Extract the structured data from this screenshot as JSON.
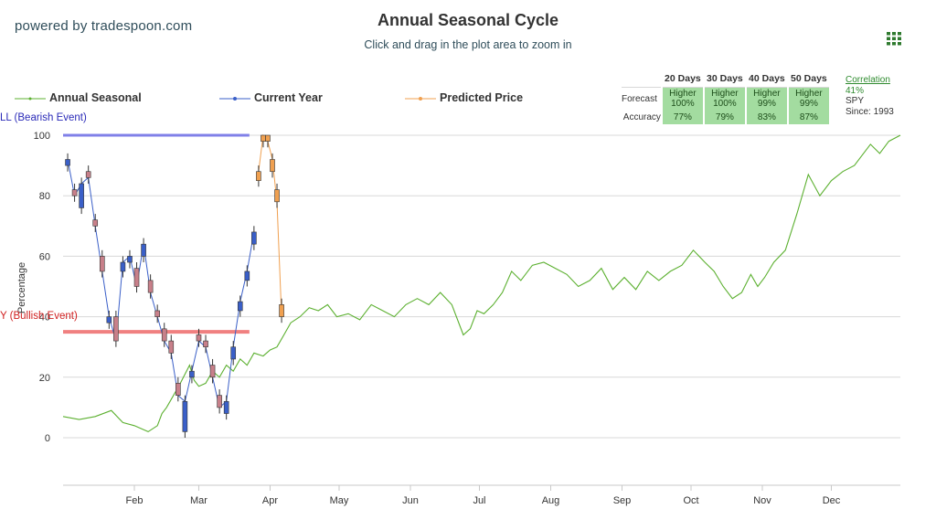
{
  "header": {
    "powered_by": "powered by tradespoon.com",
    "title": "Annual Seasonal Cycle",
    "subtitle": "Click and drag in the plot area to zoom in"
  },
  "legend": {
    "annual_seasonal": "Annual Seasonal",
    "current_year": "Current Year",
    "predicted_price": "Predicted Price"
  },
  "forecast_table": {
    "headers": [
      "20 Days",
      "30 Days",
      "40 Days",
      "50 Days"
    ],
    "forecast_label": "Forecast",
    "accuracy_label": "Accuracy",
    "forecast": [
      {
        "dir": "Higher",
        "pct": "100%"
      },
      {
        "dir": "Higher",
        "pct": "100%"
      },
      {
        "dir": "Higher",
        "pct": "99%"
      },
      {
        "dir": "Higher",
        "pct": "99%"
      }
    ],
    "accuracy": [
      "77%",
      "79%",
      "83%",
      "87%"
    ]
  },
  "correlation": {
    "link": "Correlation",
    "value": "41%",
    "symbol": "SPY",
    "since": "Since: 1993"
  },
  "colors": {
    "annual": "#5cb030",
    "current_up": "#3a5fc8",
    "current_down": "#c8808a",
    "predicted": "#f0a050",
    "bear_line": "#8080e8",
    "bull_line": "#f08080",
    "grid": "#d8d8d8"
  },
  "chart_data": {
    "type": "line",
    "ylabel": "Percentage",
    "ylim": [
      0,
      100
    ],
    "y_ticks": [
      0,
      20,
      40,
      60,
      80,
      100
    ],
    "x_tick_labels": [
      "Feb",
      "Mar",
      "Apr",
      "May",
      "Jun",
      "Jul",
      "Aug",
      "Sep",
      "Oct",
      "Nov",
      "Dec"
    ],
    "x_tick_day_of_year": [
      32,
      60,
      91,
      121,
      152,
      182,
      213,
      244,
      274,
      305,
      335
    ],
    "x_range_days": [
      1,
      365
    ],
    "bearish_event": {
      "label": "LL (Bearish Event)",
      "value": 100,
      "x_range_days": [
        1,
        82
      ]
    },
    "bullish_event": {
      "label": "Y (Bullish Event)",
      "value": 35,
      "x_range_days": [
        1,
        82
      ]
    },
    "series": [
      {
        "name": "Annual Seasonal",
        "style": "line",
        "x_day": [
          1,
          8,
          15,
          22,
          27,
          32,
          38,
          42,
          44,
          46,
          49,
          52,
          56,
          58,
          60,
          63,
          66,
          69,
          72,
          75,
          78,
          81,
          84,
          88,
          91,
          94,
          97,
          100,
          104,
          108,
          112,
          116,
          120,
          125,
          130,
          135,
          140,
          145,
          150,
          155,
          160,
          165,
          170,
          175,
          178,
          181,
          184,
          188,
          192,
          196,
          200,
          205,
          210,
          215,
          220,
          225,
          230,
          235,
          240,
          245,
          250,
          255,
          260,
          265,
          270,
          275,
          280,
          284,
          288,
          292,
          296,
          300,
          303,
          306,
          310,
          315,
          320,
          325,
          330,
          335,
          340,
          345,
          348,
          352,
          356,
          360,
          365
        ],
        "values": [
          7,
          6,
          7,
          9,
          5,
          4,
          2,
          4,
          8,
          10,
          14,
          18,
          24,
          19,
          17,
          18,
          22,
          20,
          24,
          22,
          26,
          24,
          28,
          27,
          29,
          30,
          34,
          38,
          40,
          43,
          42,
          44,
          40,
          41,
          39,
          44,
          42,
          40,
          44,
          46,
          44,
          48,
          44,
          34,
          36,
          42,
          41,
          44,
          48,
          55,
          52,
          57,
          58,
          56,
          54,
          50,
          52,
          56,
          49,
          53,
          49,
          55,
          52,
          55,
          57,
          62,
          58,
          55,
          50,
          46,
          48,
          54,
          50,
          53,
          58,
          62,
          74,
          87,
          80,
          85,
          88,
          90,
          93,
          97,
          94,
          98,
          100
        ]
      },
      {
        "name": "Current Year",
        "style": "candlestick",
        "x_day": [
          3,
          6,
          9,
          12,
          15,
          18,
          21,
          24,
          27,
          30,
          33,
          36,
          39,
          42,
          45,
          48,
          51,
          54,
          57,
          60,
          63,
          66,
          69,
          72,
          75,
          78,
          81,
          84
        ],
        "close": [
          92,
          80,
          84,
          86,
          70,
          55,
          40,
          32,
          58,
          60,
          50,
          64,
          48,
          40,
          32,
          28,
          14,
          12,
          22,
          32,
          30,
          20,
          10,
          12,
          30,
          45,
          55,
          68
        ],
        "open": [
          90,
          82,
          76,
          88,
          72,
          60,
          38,
          40,
          55,
          58,
          56,
          60,
          52,
          42,
          36,
          32,
          18,
          2,
          20,
          34,
          32,
          24,
          14,
          8,
          26,
          42,
          52,
          64
        ]
      },
      {
        "name": "Predicted Price",
        "style": "candlestick",
        "x_day": [
          86,
          88,
          90,
          92,
          94,
          96
        ],
        "close": [
          88,
          100,
          98,
          92,
          78,
          40
        ],
        "open": [
          85,
          98,
          100,
          88,
          82,
          44
        ]
      }
    ]
  }
}
